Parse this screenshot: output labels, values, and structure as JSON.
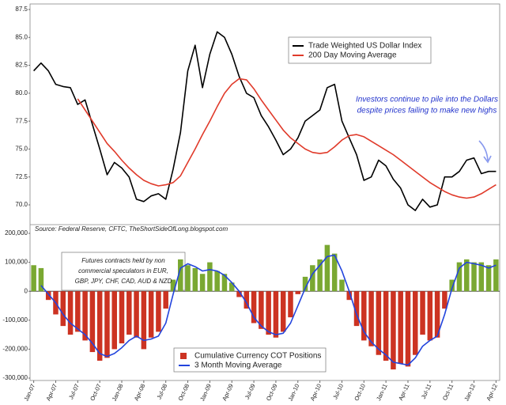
{
  "chart_data": [
    {
      "type": "line",
      "source": "Source: Federal Reserve, CFTC, TheShortSideOfLong.blogspot.com",
      "annotation": [
        "Investors continue to pile into the Dollars",
        "despite prices failing to make new highs"
      ],
      "ylim": [
        68.3,
        87.5
      ],
      "yticks": [
        {
          "value": 70,
          "label": "70.0"
        },
        {
          "value": 72.5,
          "label": "72.5"
        },
        {
          "value": 75,
          "label": "75.0"
        },
        {
          "value": 77.5,
          "label": "77.5"
        },
        {
          "value": 80,
          "label": "80.0"
        },
        {
          "value": 82.5,
          "label": "82.5"
        },
        {
          "value": 85,
          "label": "85.0"
        },
        {
          "value": 87.5,
          "label": "87.5"
        }
      ],
      "series": [
        {
          "name": "Trade Weighted US Dollar Index",
          "color": "#000000",
          "values": [
            82.0,
            82.7,
            82.0,
            80.8,
            80.6,
            80.5,
            79.0,
            79.4,
            77.2,
            75.0,
            72.7,
            73.8,
            73.3,
            72.5,
            70.5,
            70.3,
            70.8,
            71.0,
            70.5,
            73.2,
            76.5,
            82.0,
            84.3,
            80.5,
            83.5,
            85.5,
            85.0,
            83.5,
            81.5,
            80.0,
            79.6,
            78.0,
            77.0,
            75.8,
            74.5,
            75.0,
            76.0,
            77.5,
            78.0,
            78.5,
            80.5,
            80.8,
            77.5,
            76.0,
            74.5,
            72.2,
            72.5,
            74.0,
            73.5,
            72.3,
            71.5,
            70.0,
            69.5,
            70.5,
            69.8,
            70.0,
            72.5,
            72.5,
            73.0,
            74.0,
            74.2,
            72.8,
            73.0,
            73.0
          ]
        },
        {
          "name": "200 Day Moving Average",
          "color": "#e03a2a",
          "values": [
            null,
            null,
            null,
            null,
            null,
            null,
            79.5,
            78.5,
            77.5,
            76.5,
            75.5,
            74.8,
            74.0,
            73.3,
            72.7,
            72.2,
            71.9,
            71.7,
            71.8,
            72.0,
            72.6,
            73.8,
            75.0,
            76.3,
            77.5,
            78.8,
            80.0,
            80.8,
            81.3,
            81.2,
            80.4,
            79.4,
            78.5,
            77.6,
            76.7,
            76.0,
            75.5,
            75.0,
            74.7,
            74.6,
            74.7,
            75.2,
            75.8,
            76.2,
            76.3,
            76.1,
            75.7,
            75.3,
            74.9,
            74.5,
            74.0,
            73.5,
            73.0,
            72.5,
            72.0,
            71.6,
            71.2,
            70.9,
            70.7,
            70.6,
            70.7,
            71.0,
            71.4,
            71.8
          ]
        }
      ]
    },
    {
      "type": "bar-line",
      "annotation": [
        "Futures contracts held by non",
        "commercial speculators in EUR,",
        "GBP, JPY, CHF, CAD, AUD & NZD"
      ],
      "categories": [
        "Jan-07",
        null,
        null,
        "Apr-07",
        null,
        null,
        "Jul-07",
        null,
        null,
        "Oct-07",
        null,
        null,
        "Jan-08",
        null,
        null,
        "Apr-08",
        null,
        null,
        "Jul-08",
        null,
        null,
        "Oct-08",
        null,
        null,
        "Jan-09",
        null,
        null,
        "Apr-09",
        null,
        null,
        "Jul-09",
        null,
        null,
        "Oct-09",
        null,
        null,
        "Jan-10",
        null,
        null,
        "Apr-10",
        null,
        null,
        "Jul-10",
        null,
        null,
        "Oct-10",
        null,
        null,
        "Jan-11",
        null,
        null,
        "Apr-11",
        null,
        null,
        "Jul-11",
        null,
        null,
        "Oct-11",
        null,
        null,
        "Jan-12",
        null,
        null,
        "Apr-12"
      ],
      "ylim": [
        -300000,
        200000
      ],
      "yticks": [
        {
          "value": -300000,
          "label": "-300,000"
        },
        {
          "value": -200000,
          "label": "-200,000"
        },
        {
          "value": -100000,
          "label": "-100,000"
        },
        0,
        {
          "value": 100000,
          "label": "100,000"
        },
        {
          "value": 200000,
          "label": "200,000"
        }
      ],
      "series": [
        {
          "name": "Cumulative Currency COT Positions",
          "kind": "bar",
          "color": "#cc3322",
          "positive_color": "#7aa832",
          "values": [
            90000,
            80000,
            -30000,
            -80000,
            -120000,
            -150000,
            -140000,
            -170000,
            -210000,
            -240000,
            -230000,
            -200000,
            -180000,
            -150000,
            -160000,
            -200000,
            -160000,
            -140000,
            -60000,
            40000,
            110000,
            90000,
            80000,
            60000,
            100000,
            70000,
            60000,
            30000,
            -20000,
            -60000,
            -110000,
            -130000,
            -150000,
            -160000,
            -140000,
            -90000,
            -10000,
            50000,
            90000,
            110000,
            160000,
            130000,
            40000,
            -30000,
            -120000,
            -170000,
            -190000,
            -220000,
            -240000,
            -270000,
            -250000,
            -260000,
            -220000,
            -150000,
            -170000,
            -160000,
            -60000,
            40000,
            100000,
            110000,
            100000,
            100000,
            90000,
            110000
          ]
        },
        {
          "name": "3 Month Moving Average",
          "kind": "line",
          "color": "#2244dd",
          "values": [
            null,
            20000,
            -10000,
            -40000,
            -80000,
            -110000,
            -130000,
            -150000,
            -180000,
            -215000,
            -225000,
            -215000,
            -195000,
            -170000,
            -155000,
            -170000,
            -165000,
            -155000,
            -110000,
            -10000,
            80000,
            95000,
            85000,
            70000,
            75000,
            70000,
            55000,
            30000,
            0,
            -40000,
            -90000,
            -120000,
            -140000,
            -150000,
            -145000,
            -110000,
            -50000,
            10000,
            60000,
            90000,
            120000,
            125000,
            70000,
            0,
            -80000,
            -140000,
            -175000,
            -200000,
            -220000,
            -245000,
            -250000,
            -255000,
            -230000,
            -190000,
            -170000,
            -155000,
            -80000,
            10000,
            80000,
            100000,
            95000,
            90000,
            80000,
            90000
          ]
        }
      ]
    }
  ]
}
